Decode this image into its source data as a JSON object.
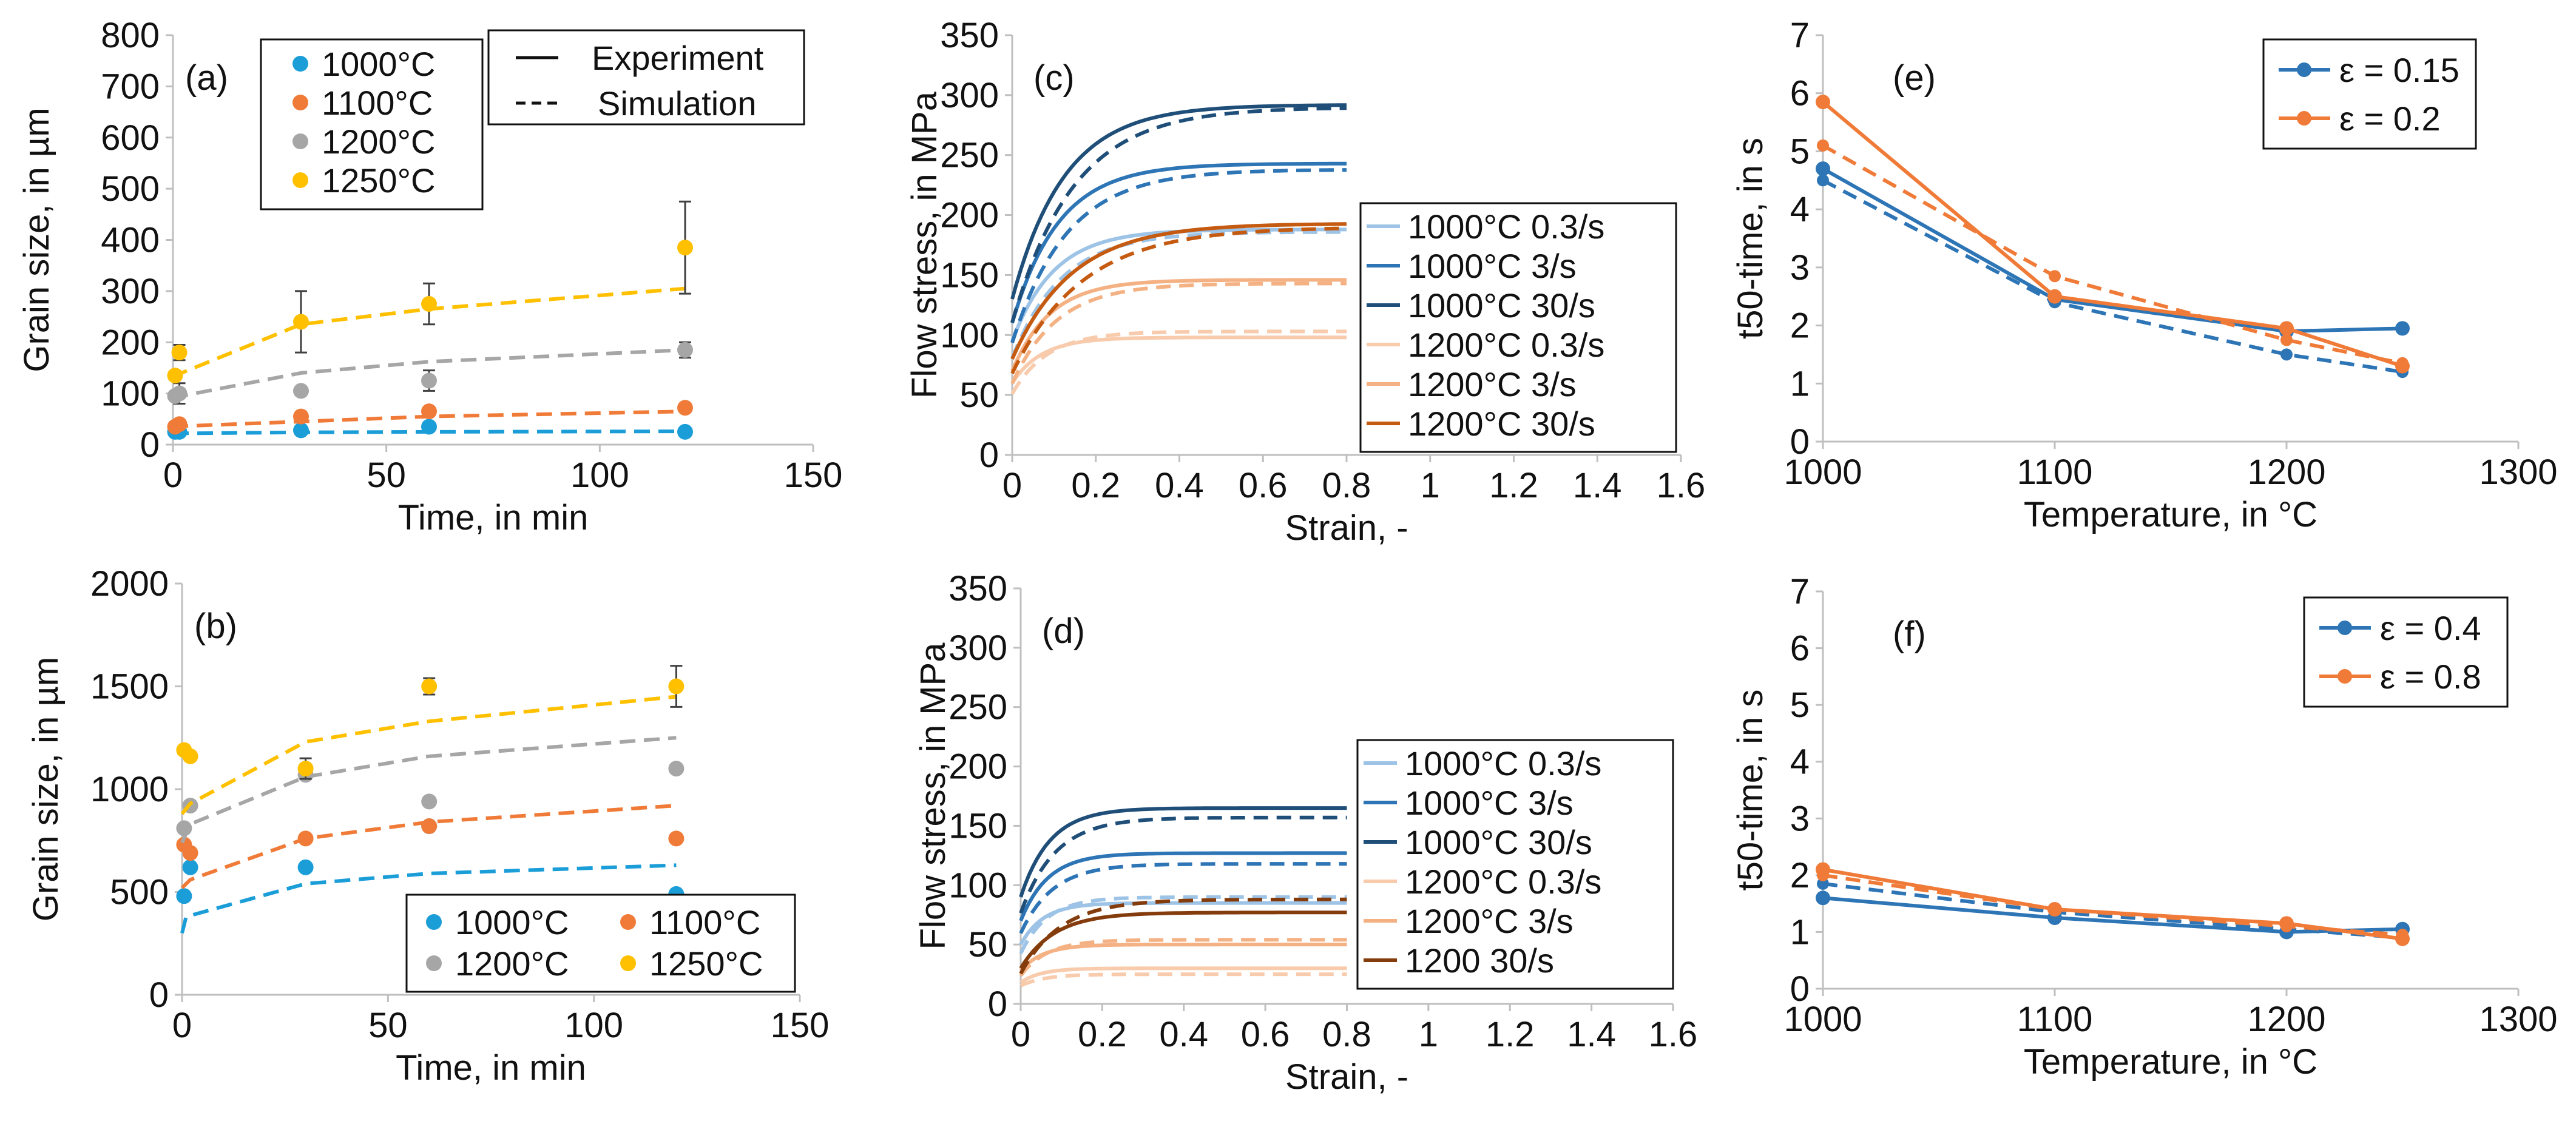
{
  "chart_data": [
    {
      "id": "a",
      "type": "scatter",
      "panel_label": "(a)",
      "xlabel": "Time, in min",
      "ylabel": "Grain size, in µm",
      "xlim": [
        0,
        150
      ],
      "ylim": [
        0,
        800
      ],
      "xticks": [
        0,
        50,
        100,
        150
      ],
      "yticks": [
        0,
        100,
        200,
        300,
        400,
        500,
        600,
        700,
        800
      ],
      "series": [
        {
          "name": "1000°C",
          "color": "#1b9ed8",
          "points": [
            [
              0.5,
              25
            ],
            [
              1.5,
              25
            ],
            [
              30,
              28
            ],
            [
              60,
              35
            ],
            [
              120,
              25
            ]
          ],
          "sim": [
            [
              0,
              22
            ],
            [
              2,
              22
            ],
            [
              30,
              24
            ],
            [
              60,
              25
            ],
            [
              120,
              26
            ]
          ]
        },
        {
          "name": "1100°C",
          "color": "#f07b38",
          "points": [
            [
              0.5,
              35
            ],
            [
              1.5,
              40
            ],
            [
              30,
              55
            ],
            [
              60,
              65
            ],
            [
              120,
              72
            ]
          ],
          "sim": [
            [
              0,
              30
            ],
            [
              2,
              36
            ],
            [
              30,
              45
            ],
            [
              60,
              55
            ],
            [
              120,
              65
            ]
          ]
        },
        {
          "name": "1200°C",
          "color": "#a6a6a6",
          "points": [
            [
              0.5,
              95
            ],
            [
              1.5,
              100
            ],
            [
              30,
              105
            ],
            [
              60,
              125
            ],
            [
              120,
              185
            ]
          ],
          "err": [
            [
              1.5,
              100,
              20
            ],
            [
              60,
              125,
              20
            ],
            [
              120,
              185,
              15
            ]
          ],
          "sim": [
            [
              0,
              88
            ],
            [
              2,
              95
            ],
            [
              30,
              140
            ],
            [
              60,
              162
            ],
            [
              120,
              185
            ]
          ]
        },
        {
          "name": "1250°C",
          "color": "#ffc000",
          "points": [
            [
              0.5,
              135
            ],
            [
              1.5,
              180
            ],
            [
              30,
              240
            ],
            [
              60,
              275
            ],
            [
              120,
              385
            ]
          ],
          "err": [
            [
              1.5,
              180,
              15
            ],
            [
              30,
              240,
              60
            ],
            [
              60,
              275,
              40
            ],
            [
              120,
              385,
              90
            ]
          ],
          "sim": [
            [
              0,
              130
            ],
            [
              2,
              140
            ],
            [
              30,
              235
            ],
            [
              60,
              265
            ],
            [
              120,
              305
            ]
          ]
        }
      ],
      "legend_series": [
        "1000°C",
        "1100°C",
        "1200°C",
        "1250°C"
      ],
      "legend_lines": [
        "Experiment",
        "Simulation"
      ]
    },
    {
      "id": "b",
      "type": "scatter",
      "panel_label": "(b)",
      "xlabel": "Time, in min",
      "ylabel": "Grain size, in µm",
      "xlim": [
        0,
        150
      ],
      "ylim": [
        0,
        2000
      ],
      "xticks": [
        0,
        50,
        100,
        150
      ],
      "yticks": [
        0,
        500,
        1000,
        1500,
        2000
      ],
      "series": [
        {
          "name": "1000°C",
          "color": "#1b9ed8",
          "points": [
            [
              0.5,
              480
            ],
            [
              2,
              620
            ],
            [
              30,
              620
            ],
            [
              60,
              820
            ],
            [
              120,
              490
            ]
          ],
          "sim": [
            [
              0,
              300
            ],
            [
              1,
              380
            ],
            [
              30,
              540
            ],
            [
              60,
              590
            ],
            [
              120,
              630
            ]
          ]
        },
        {
          "name": "1100°C",
          "color": "#f07b38",
          "points": [
            [
              0.5,
              730
            ],
            [
              2,
              690
            ],
            [
              30,
              760
            ],
            [
              60,
              820
            ],
            [
              120,
              760
            ]
          ],
          "sim": [
            [
              0,
              520
            ],
            [
              2,
              560
            ],
            [
              30,
              760
            ],
            [
              60,
              840
            ],
            [
              120,
              920
            ]
          ]
        },
        {
          "name": "1200°C",
          "color": "#a6a6a6",
          "points": [
            [
              0.5,
              810
            ],
            [
              2,
              920
            ],
            [
              30,
              1070
            ],
            [
              60,
              940
            ],
            [
              120,
              1100
            ]
          ],
          "sim": [
            [
              0,
              740
            ],
            [
              2,
              830
            ],
            [
              30,
              1060
            ],
            [
              60,
              1160
            ],
            [
              120,
              1250
            ]
          ]
        },
        {
          "name": "1250°C",
          "color": "#ffc000",
          "points": [
            [
              0.5,
              1190
            ],
            [
              2,
              1160
            ],
            [
              30,
              1100
            ],
            [
              60,
              1500
            ],
            [
              120,
              1500
            ]
          ],
          "err": [
            [
              30,
              1100,
              50
            ],
            [
              60,
              1500,
              40
            ],
            [
              120,
              1500,
              100
            ]
          ],
          "sim": [
            [
              0,
              880
            ],
            [
              2,
              930
            ],
            [
              30,
              1230
            ],
            [
              60,
              1330
            ],
            [
              120,
              1450
            ]
          ]
        }
      ],
      "legend_series": [
        "1000°C",
        "1100°C",
        "1200°C",
        "1250°C"
      ]
    },
    {
      "id": "c",
      "type": "line",
      "panel_label": "(c)",
      "xlabel": "Strain, -",
      "ylabel": "Flow stress, in MPa",
      "xlim": [
        0,
        1.6
      ],
      "ylim": [
        0,
        350
      ],
      "xticks": [
        0,
        0.2,
        0.4,
        0.6,
        0.8,
        1,
        1.2,
        1.4,
        1.6
      ],
      "yticks": [
        0,
        50,
        100,
        150,
        200,
        250,
        300,
        350
      ],
      "series": [
        {
          "name": "1000°C 0.3/s",
          "color": "#9dc3e6",
          "s0": 95,
          "smax": 188,
          "ssim": 186,
          "k": 10
        },
        {
          "name": "1000°C 3/s",
          "color": "#2e75b6",
          "s0": 110,
          "smax": 243,
          "ssim": 238,
          "k": 9
        },
        {
          "name": "1000°C 30/s",
          "color": "#1f4e79",
          "s0": 130,
          "smax": 292,
          "ssim": 290,
          "k": 8
        },
        {
          "name": "1200°C 0.3/s",
          "color": "#f8cbad",
          "s0": 60,
          "smax": 98,
          "ssim": 103,
          "k": 14
        },
        {
          "name": "1200°C 3/s",
          "color": "#f4b183",
          "s0": 70,
          "smax": 146,
          "ssim": 143,
          "k": 11
        },
        {
          "name": "1200°C 30/s",
          "color": "#c55a11",
          "s0": 80,
          "smax": 193,
          "ssim": 190,
          "k": 7
        }
      ],
      "x_end": 0.8
    },
    {
      "id": "d",
      "type": "line",
      "panel_label": "(d)",
      "xlabel": "Strain, -",
      "ylabel": "Flow stress, in MPa",
      "xlim": [
        0,
        1.6
      ],
      "ylim": [
        0,
        350
      ],
      "xticks": [
        0,
        0.2,
        0.4,
        0.6,
        0.8,
        1,
        1.2,
        1.4,
        1.6
      ],
      "yticks": [
        0,
        50,
        100,
        150,
        200,
        250,
        300,
        350
      ],
      "series": [
        {
          "name": "1000°C 0.3/s",
          "color": "#9dc3e6",
          "s0": 50,
          "smax": 85,
          "ssim": 90,
          "k": 18
        },
        {
          "name": "1000°C 3/s",
          "color": "#2e75b6",
          "s0": 70,
          "smax": 127,
          "ssim": 118,
          "k": 15
        },
        {
          "name": "1000°C 30/s",
          "color": "#1f4e79",
          "s0": 90,
          "smax": 165,
          "ssim": 157,
          "k": 14
        },
        {
          "name": "1200°C 0.3/s",
          "color": "#f8cbad",
          "s0": 18,
          "smax": 30,
          "ssim": 25,
          "k": 20
        },
        {
          "name": "1200°C 3/s",
          "color": "#f4b183",
          "s0": 28,
          "smax": 50,
          "ssim": 54,
          "k": 18
        },
        {
          "name": "1200 30/s",
          "color": "#843c0c",
          "s0": 30,
          "smax": 77,
          "ssim": 88,
          "k": 12
        }
      ],
      "x_end": 0.8
    },
    {
      "id": "e",
      "type": "line",
      "panel_label": "(e)",
      "xlabel": "Temperature, in °C",
      "ylabel": "t50-time, in s",
      "xlim": [
        1000,
        1300
      ],
      "ylim": [
        0,
        7
      ],
      "xticks": [
        1000,
        1100,
        1200,
        1300
      ],
      "yticks": [
        0,
        1,
        2,
        3,
        4,
        5,
        6,
        7
      ],
      "series": [
        {
          "name": "ε = 0.15",
          "color": "#2e75b6",
          "x": [
            1000,
            1100,
            1200,
            1250
          ],
          "values": [
            4.7,
            2.45,
            1.9,
            1.95
          ],
          "sim": [
            4.5,
            2.4,
            1.5,
            1.2
          ]
        },
        {
          "name": "ε = 0.2",
          "color": "#f07b38",
          "x": [
            1000,
            1100,
            1200,
            1250
          ],
          "values": [
            5.85,
            2.5,
            1.95,
            1.3
          ],
          "sim": [
            5.1,
            2.85,
            1.75,
            1.35
          ]
        }
      ]
    },
    {
      "id": "f",
      "type": "line",
      "panel_label": "(f)",
      "xlabel": "Temperature, in °C",
      "ylabel": "t50-time, in s",
      "xlim": [
        1000,
        1300
      ],
      "ylim": [
        0,
        7
      ],
      "xticks": [
        1000,
        1100,
        1200,
        1300
      ],
      "yticks": [
        0,
        1,
        2,
        3,
        4,
        5,
        6,
        7
      ],
      "series": [
        {
          "name": "ε =  0.4",
          "color": "#2e75b6",
          "x": [
            1000,
            1100,
            1200,
            1250
          ],
          "values": [
            1.6,
            1.25,
            1.0,
            1.05
          ],
          "sim": [
            1.85,
            1.35,
            1.05,
            0.9
          ]
        },
        {
          "name": "ε =  0.8",
          "color": "#f07b38",
          "x": [
            1000,
            1100,
            1200,
            1250
          ],
          "values": [
            2.1,
            1.4,
            1.15,
            0.88
          ],
          "sim": [
            2.0,
            1.4,
            1.1,
            0.95
          ]
        }
      ]
    }
  ]
}
